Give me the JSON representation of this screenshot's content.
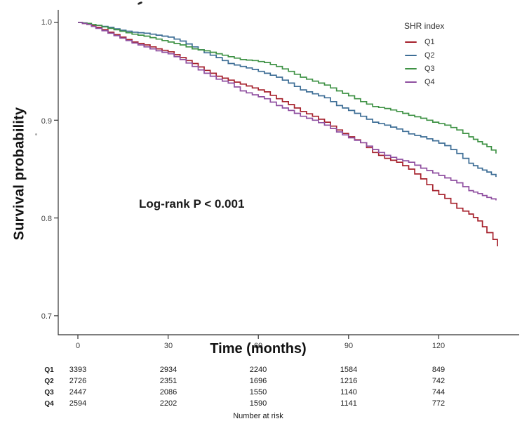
{
  "figure": {
    "y_axis": {
      "title": "Survival probability",
      "ticks": [
        "1.0",
        "0.9",
        "0.8",
        "0.7"
      ]
    },
    "x_axis": {
      "title": "Time (months)",
      "ticks": [
        "0",
        "30",
        "60",
        "90",
        "120"
      ]
    },
    "annotation": "Log-rank P < 0.001",
    "legend": {
      "title": "SHR index",
      "items": [
        {
          "label": "Q1",
          "color": "#a6212c"
        },
        {
          "label": "Q2",
          "color": "#3e6e96"
        },
        {
          "label": "Q3",
          "color": "#3f9245"
        },
        {
          "label": "Q4",
          "color": "#8f4fa0"
        }
      ]
    },
    "risk_table": {
      "caption": "Number at risk",
      "rows": [
        {
          "label": "Q1",
          "counts": [
            "3393",
            "2934",
            "2240",
            "1584",
            "849"
          ]
        },
        {
          "label": "Q2",
          "counts": [
            "2726",
            "2351",
            "1696",
            "1216",
            "742"
          ]
        },
        {
          "label": "Q3",
          "counts": [
            "2447",
            "2086",
            "1550",
            "1140",
            "744"
          ]
        },
        {
          "label": "Q4",
          "counts": [
            "2594",
            "2202",
            "1590",
            "1141",
            "772"
          ]
        }
      ]
    }
  },
  "chart_data": {
    "type": "line",
    "subtype": "kaplan-meier-step",
    "title": "",
    "xlabel": "Time (months)",
    "ylabel": "Survival probability",
    "annotation": "Log-rank P < 0.001",
    "legend_title": "SHR index",
    "legend_position": "top-right-inside",
    "grid": false,
    "x_ticks": [
      0,
      30,
      60,
      90,
      120
    ],
    "y_ticks": [
      1.0,
      0.9,
      0.8,
      0.7
    ],
    "xlim": [
      0,
      146
    ],
    "ylim": [
      0.68,
      1.01
    ],
    "series": [
      {
        "name": "Q1",
        "color": "#a6212c",
        "points": [
          [
            0,
            1.0
          ],
          [
            3,
            0.998
          ],
          [
            6,
            0.995
          ],
          [
            10,
            0.99
          ],
          [
            14,
            0.985
          ],
          [
            18,
            0.98
          ],
          [
            22,
            0.977
          ],
          [
            26,
            0.973
          ],
          [
            30,
            0.97
          ],
          [
            34,
            0.964
          ],
          [
            38,
            0.958
          ],
          [
            42,
            0.951
          ],
          [
            46,
            0.945
          ],
          [
            50,
            0.941
          ],
          [
            54,
            0.937
          ],
          [
            58,
            0.933
          ],
          [
            62,
            0.929
          ],
          [
            66,
            0.922
          ],
          [
            70,
            0.916
          ],
          [
            74,
            0.909
          ],
          [
            78,
            0.904
          ],
          [
            82,
            0.898
          ],
          [
            86,
            0.89
          ],
          [
            90,
            0.883
          ],
          [
            94,
            0.877
          ],
          [
            98,
            0.867
          ],
          [
            102,
            0.861
          ],
          [
            106,
            0.857
          ],
          [
            110,
            0.85
          ],
          [
            114,
            0.84
          ],
          [
            118,
            0.828
          ],
          [
            122,
            0.82
          ],
          [
            126,
            0.81
          ],
          [
            130,
            0.804
          ],
          [
            133,
            0.797
          ],
          [
            136,
            0.785
          ],
          [
            138,
            0.778
          ],
          [
            139.5,
            0.771
          ]
        ]
      },
      {
        "name": "Q2",
        "color": "#3e6e96",
        "points": [
          [
            0,
            1.0
          ],
          [
            3,
            0.999
          ],
          [
            6,
            0.997
          ],
          [
            10,
            0.995
          ],
          [
            14,
            0.992
          ],
          [
            18,
            0.99
          ],
          [
            22,
            0.989
          ],
          [
            26,
            0.987
          ],
          [
            30,
            0.985
          ],
          [
            34,
            0.981
          ],
          [
            38,
            0.975
          ],
          [
            42,
            0.969
          ],
          [
            46,
            0.964
          ],
          [
            50,
            0.958
          ],
          [
            54,
            0.955
          ],
          [
            58,
            0.952
          ],
          [
            62,
            0.948
          ],
          [
            66,
            0.944
          ],
          [
            70,
            0.938
          ],
          [
            74,
            0.931
          ],
          [
            78,
            0.927
          ],
          [
            82,
            0.923
          ],
          [
            86,
            0.915
          ],
          [
            90,
            0.91
          ],
          [
            94,
            0.904
          ],
          [
            98,
            0.898
          ],
          [
            102,
            0.895
          ],
          [
            106,
            0.891
          ],
          [
            110,
            0.886
          ],
          [
            114,
            0.883
          ],
          [
            118,
            0.879
          ],
          [
            122,
            0.874
          ],
          [
            126,
            0.866
          ],
          [
            130,
            0.856
          ],
          [
            133,
            0.851
          ],
          [
            136,
            0.847
          ],
          [
            139,
            0.842
          ]
        ]
      },
      {
        "name": "Q3",
        "color": "#3f9245",
        "points": [
          [
            0,
            1.0
          ],
          [
            3,
            0.999
          ],
          [
            6,
            0.997
          ],
          [
            10,
            0.994
          ],
          [
            14,
            0.991
          ],
          [
            18,
            0.988
          ],
          [
            22,
            0.986
          ],
          [
            26,
            0.983
          ],
          [
            30,
            0.98
          ],
          [
            34,
            0.977
          ],
          [
            38,
            0.973
          ],
          [
            42,
            0.971
          ],
          [
            46,
            0.968
          ],
          [
            50,
            0.965
          ],
          [
            54,
            0.962
          ],
          [
            58,
            0.961
          ],
          [
            62,
            0.959
          ],
          [
            66,
            0.955
          ],
          [
            70,
            0.95
          ],
          [
            74,
            0.944
          ],
          [
            78,
            0.94
          ],
          [
            82,
            0.936
          ],
          [
            86,
            0.93
          ],
          [
            90,
            0.925
          ],
          [
            94,
            0.919
          ],
          [
            98,
            0.914
          ],
          [
            102,
            0.912
          ],
          [
            106,
            0.909
          ],
          [
            110,
            0.905
          ],
          [
            114,
            0.902
          ],
          [
            118,
            0.898
          ],
          [
            122,
            0.895
          ],
          [
            126,
            0.89
          ],
          [
            130,
            0.883
          ],
          [
            133,
            0.878
          ],
          [
            136,
            0.873
          ],
          [
            139,
            0.866
          ]
        ]
      },
      {
        "name": "Q4",
        "color": "#8f4fa0",
        "points": [
          [
            0,
            1.0
          ],
          [
            3,
            0.998
          ],
          [
            6,
            0.994
          ],
          [
            10,
            0.989
          ],
          [
            14,
            0.984
          ],
          [
            18,
            0.979
          ],
          [
            22,
            0.975
          ],
          [
            26,
            0.971
          ],
          [
            30,
            0.968
          ],
          [
            34,
            0.962
          ],
          [
            38,
            0.955
          ],
          [
            42,
            0.948
          ],
          [
            46,
            0.942
          ],
          [
            50,
            0.938
          ],
          [
            54,
            0.93
          ],
          [
            58,
            0.926
          ],
          [
            62,
            0.922
          ],
          [
            66,
            0.915
          ],
          [
            70,
            0.91
          ],
          [
            74,
            0.904
          ],
          [
            78,
            0.9
          ],
          [
            82,
            0.895
          ],
          [
            86,
            0.888
          ],
          [
            90,
            0.882
          ],
          [
            94,
            0.877
          ],
          [
            98,
            0.87
          ],
          [
            102,
            0.864
          ],
          [
            106,
            0.86
          ],
          [
            110,
            0.857
          ],
          [
            114,
            0.851
          ],
          [
            118,
            0.846
          ],
          [
            122,
            0.841
          ],
          [
            126,
            0.836
          ],
          [
            130,
            0.828
          ],
          [
            133,
            0.825
          ],
          [
            136,
            0.821
          ],
          [
            139,
            0.818
          ]
        ]
      }
    ],
    "risk_table": {
      "caption": "Number at risk",
      "times": [
        0,
        30,
        60,
        90,
        120
      ],
      "rows": [
        {
          "group": "Q1",
          "n": [
            3393,
            2934,
            2240,
            1584,
            849
          ]
        },
        {
          "group": "Q2",
          "n": [
            2726,
            2351,
            1696,
            1216,
            742
          ]
        },
        {
          "group": "Q3",
          "n": [
            2447,
            2086,
            1550,
            1140,
            744
          ]
        },
        {
          "group": "Q4",
          "n": [
            2594,
            2202,
            1590,
            1141,
            772
          ]
        }
      ]
    }
  }
}
